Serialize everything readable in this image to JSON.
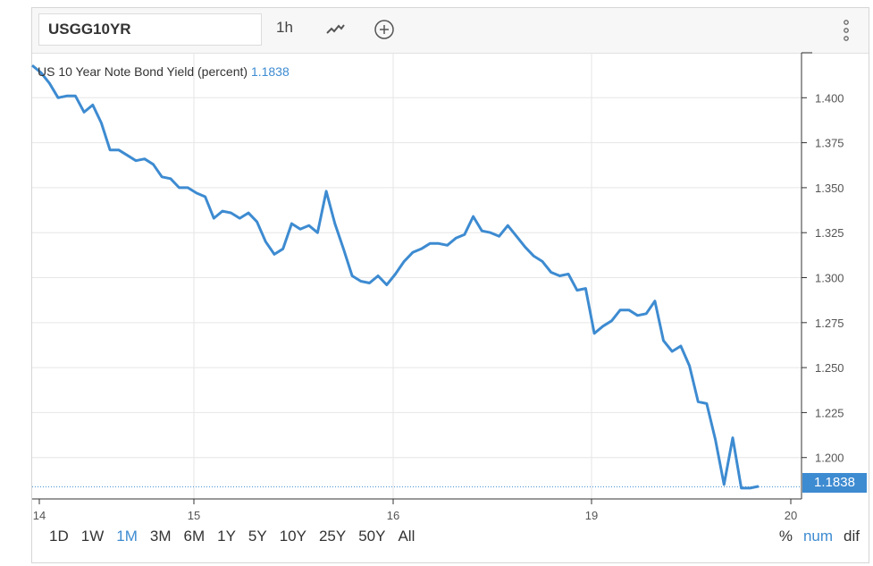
{
  "toolbar": {
    "symbol": "USGG10YR",
    "interval": "1h",
    "chart_type_icon": "line-chart-icon",
    "add_icon": "plus-circle-icon",
    "menu_icon": "vertical-dots-icon"
  },
  "legend": {
    "label": "US 10 Year Note Bond Yield (percent)",
    "value": "1.1838"
  },
  "ranges": [
    "1D",
    "1W",
    "1M",
    "3M",
    "6M",
    "1Y",
    "5Y",
    "10Y",
    "25Y",
    "50Y",
    "All"
  ],
  "active_range": "1M",
  "scales": [
    "%",
    "num",
    "dif"
  ],
  "active_scale": "num",
  "last_price_label": "1.1838",
  "colors": {
    "line": "#3d8bd1",
    "grid": "#e6e6e6",
    "active": "#3d8bd1"
  },
  "chart_data": {
    "type": "line",
    "title": "",
    "xlabel": "",
    "ylabel": "",
    "x_ticks": [
      "14",
      "15",
      "16",
      "19",
      "20"
    ],
    "y_ticks": [
      "1.400",
      "1.375",
      "1.350",
      "1.325",
      "1.300",
      "1.275",
      "1.250",
      "1.225",
      "1.200"
    ],
    "ylim": [
      1.177,
      1.425
    ],
    "grid": true,
    "series": [
      {
        "values": [
          1.418,
          1.414,
          1.408,
          1.4,
          1.401,
          1.401,
          1.392,
          1.396,
          1.386,
          1.371,
          1.371,
          1.368,
          1.365,
          1.366,
          1.363,
          1.356,
          1.355,
          1.35,
          1.35,
          1.347,
          1.345,
          1.333,
          1.337,
          1.336,
          1.333,
          1.336,
          1.331,
          1.32,
          1.313,
          1.316,
          1.33,
          1.327,
          1.329,
          1.325,
          1.348,
          1.33,
          1.316,
          1.301,
          1.298,
          1.297,
          1.301,
          1.296,
          1.302,
          1.309,
          1.314,
          1.316,
          1.319,
          1.319,
          1.318,
          1.322,
          1.324,
          1.334,
          1.326,
          1.325,
          1.323,
          1.329,
          1.323,
          1.317,
          1.312,
          1.309,
          1.303,
          1.301,
          1.302,
          1.293,
          1.294,
          1.269,
          1.273,
          1.276,
          1.282,
          1.282,
          1.279,
          1.28,
          1.287,
          1.265,
          1.259,
          1.262,
          1.251,
          1.231,
          1.23,
          1.21,
          1.185,
          1.211,
          1.183,
          1.183,
          1.184
        ]
      }
    ]
  }
}
